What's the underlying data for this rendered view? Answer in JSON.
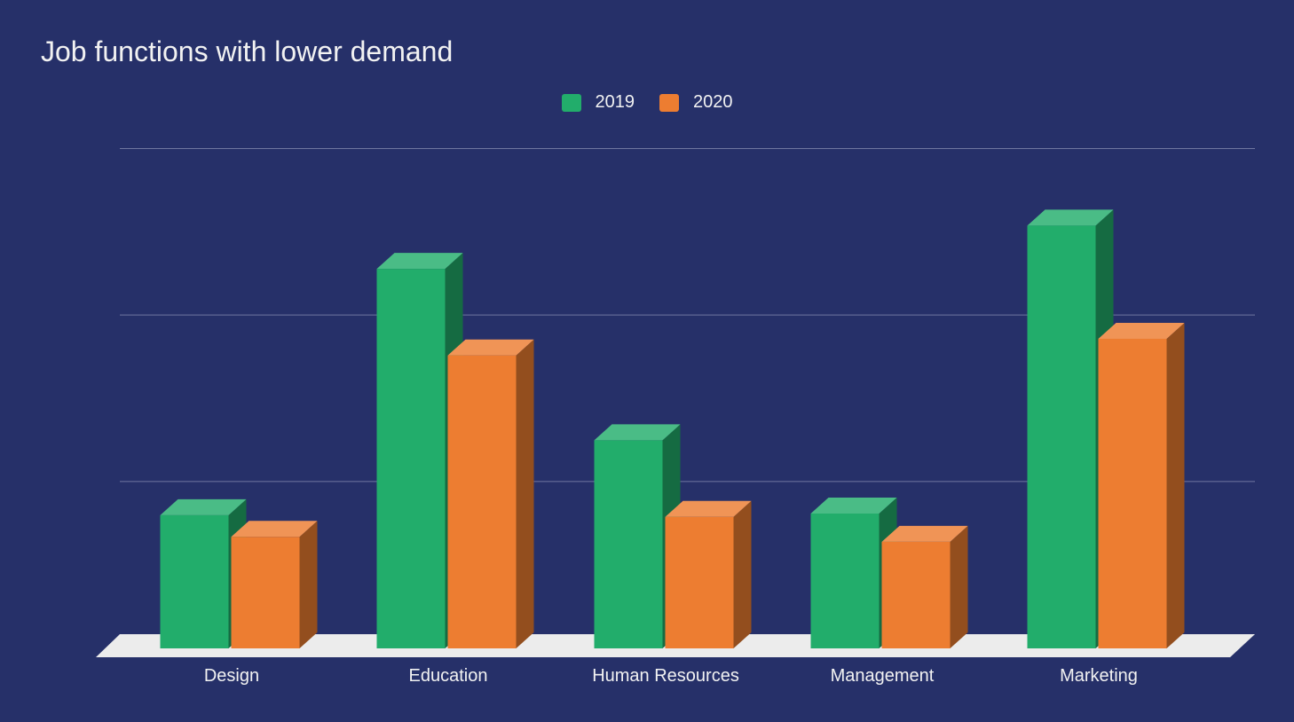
{
  "title": "Job functions with lower demand",
  "legend": [
    {
      "name": "2019",
      "color": "#22ad6b"
    },
    {
      "name": "2020",
      "color": "#ed7d31"
    }
  ],
  "chart_data": {
    "type": "bar",
    "title": "Job functions with lower demand",
    "categories": [
      "Design",
      "Education",
      "Human Resources",
      "Management",
      "Marketing"
    ],
    "series": [
      {
        "name": "2019",
        "color": "#22ad6b",
        "values": [
          0.8,
          2.28,
          1.25,
          0.81,
          2.54
        ]
      },
      {
        "name": "2020",
        "color": "#ed7d31",
        "values": [
          0.67,
          1.76,
          0.79,
          0.64,
          1.86
        ]
      }
    ],
    "xlabel": "",
    "ylabel": "",
    "ylim": [
      0,
      3
    ],
    "y_tick_labels_visible": false,
    "grid": true,
    "legend_position": "top",
    "style": "3d-column"
  }
}
